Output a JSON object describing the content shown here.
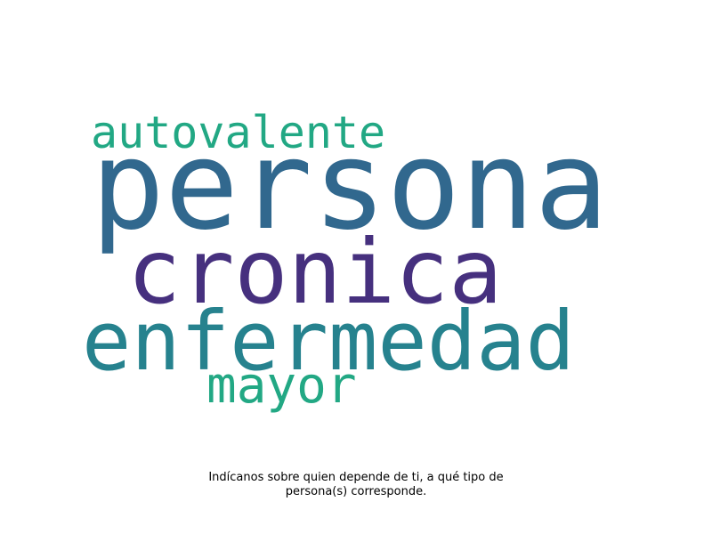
{
  "wordcloud": {
    "words": [
      {
        "text": "persona",
        "color": "#31688e"
      },
      {
        "text": "autovalente",
        "color": "#22a884"
      },
      {
        "text": "cronica",
        "color": "#46307e"
      },
      {
        "text": "enfermedad",
        "color": "#26828e"
      },
      {
        "text": "mayor",
        "color": "#22a884"
      }
    ]
  },
  "caption": {
    "line1": "Indícanos sobre quien depende de ti, a qué tipo de",
    "line2": "persona(s) corresponde."
  }
}
